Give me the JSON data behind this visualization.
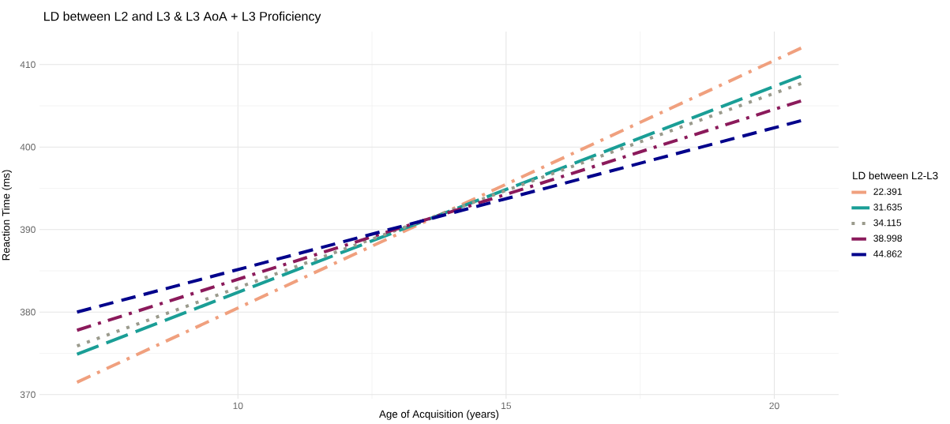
{
  "chart_data": {
    "type": "line",
    "title": "LD between L2 and L3 & L3 AoA + L3 Proficiency",
    "xlabel": "Age of Acquisition (years)",
    "ylabel": "Reaction Time (ms)",
    "legend_title": "LD between L2-L3",
    "x": [
      7,
      20.5
    ],
    "series": [
      {
        "name": "22.391",
        "color": "#f0a07e",
        "line_style": "dashdot",
        "values": [
          371.5,
          412.0
        ]
      },
      {
        "name": "31.635",
        "color": "#1a9e96",
        "line_style": "longdash",
        "values": [
          374.9,
          408.6
        ]
      },
      {
        "name": "34.115",
        "color": "#9a9a8c",
        "line_style": "dotted",
        "values": [
          375.9,
          407.7
        ]
      },
      {
        "name": "38.998",
        "color": "#8b1a5b",
        "line_style": "dashdot",
        "values": [
          377.8,
          405.6
        ]
      },
      {
        "name": "44.862",
        "color": "#00008b",
        "line_style": "dashed",
        "values": [
          380.0,
          403.2
        ]
      }
    ],
    "xlim": [
      6.3,
      21.2
    ],
    "ylim": [
      369.5,
      414
    ],
    "xticks": [
      10,
      15,
      20
    ],
    "yticks": [
      370,
      380,
      390,
      400,
      410
    ],
    "grid": true,
    "legend": "right",
    "marker": "none"
  }
}
